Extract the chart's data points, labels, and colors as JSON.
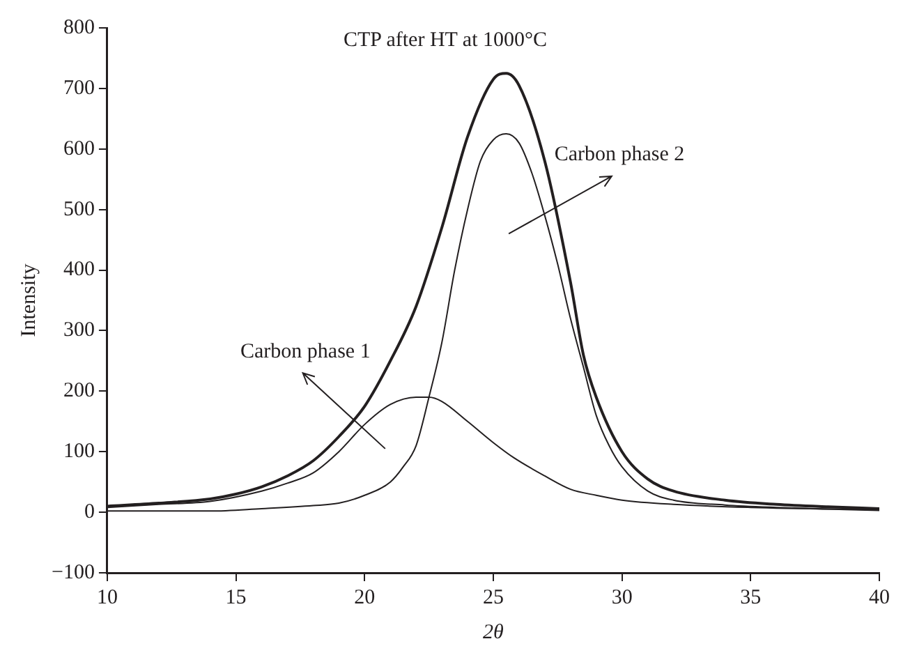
{
  "chart_data": {
    "type": "line",
    "title": "CTP after HT at 1000°C",
    "xlabel": "2θ",
    "ylabel": "Intensity",
    "xlim": [
      10,
      40
    ],
    "xticks": [
      10,
      15,
      20,
      25,
      30,
      35,
      40
    ],
    "ylim": [
      -100,
      800
    ],
    "yticks": [
      -100,
      0,
      100,
      200,
      300,
      400,
      500,
      600,
      700,
      800
    ],
    "grid": false,
    "legend": false,
    "marker": "none",
    "line_style": "solid",
    "series": [
      {
        "color": "#231f20",
        "x": [
          10,
          12,
          14,
          15,
          16,
          17,
          18,
          19,
          20,
          21,
          22,
          23,
          24,
          25,
          25.5,
          26,
          27,
          28,
          28.5,
          29,
          30,
          31,
          32,
          34,
          36,
          38,
          40
        ],
        "values": [
          10,
          15,
          22,
          30,
          42,
          60,
          85,
          125,
          175,
          250,
          340,
          470,
          620,
          715,
          725,
          705,
          580,
          380,
          260,
          190,
          100,
          55,
          35,
          20,
          13,
          9,
          6
        ]
      },
      {
        "name": "Carbon phase 1",
        "color": "#231f20",
        "x": [
          10,
          12,
          14,
          16,
          17,
          18,
          19,
          20,
          21,
          22,
          22.5,
          23,
          24,
          25,
          25.8,
          27,
          28,
          29,
          30,
          32,
          35,
          40
        ],
        "values": [
          8,
          13,
          18,
          35,
          48,
          65,
          100,
          145,
          178,
          190,
          190,
          183,
          150,
          115,
          90,
          60,
          38,
          28,
          20,
          13,
          8,
          4
        ]
      },
      {
        "name": "Carbon phase 2",
        "color": "#231f20",
        "x": [
          10,
          14,
          16,
          18,
          19,
          20,
          21,
          21.5,
          22,
          22.5,
          23,
          23.5,
          24,
          24.5,
          25,
          25.5,
          26,
          26.5,
          27,
          27.5,
          28,
          28.5,
          29,
          29.5,
          30,
          31,
          32,
          34,
          36,
          40
        ],
        "values": [
          2,
          2,
          6,
          11,
          15,
          28,
          50,
          75,
          110,
          190,
          280,
          400,
          500,
          580,
          615,
          625,
          610,
          560,
          490,
          410,
          320,
          240,
          160,
          110,
          75,
          35,
          20,
          12,
          8,
          3
        ]
      }
    ]
  }
}
